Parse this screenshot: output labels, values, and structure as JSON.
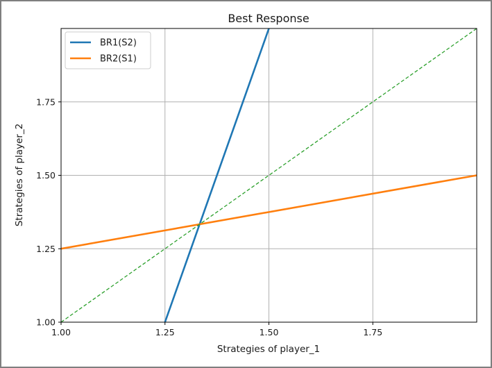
{
  "chart_data": {
    "type": "line",
    "title": "Best Response",
    "xlabel": "Strategies of player_1",
    "ylabel": "Strategies of player_2",
    "xlim": [
      1.0,
      2.0
    ],
    "ylim": [
      1.0,
      2.0
    ],
    "xticks": [
      1.0,
      1.25,
      1.5,
      1.75
    ],
    "yticks": [
      1.0,
      1.25,
      1.5,
      1.75
    ],
    "xtick_labels": [
      "1.00",
      "1.25",
      "1.50",
      "1.75"
    ],
    "ytick_labels": [
      "1.00",
      "1.25",
      "1.50",
      "1.75"
    ],
    "grid": true,
    "legend_position": "top-left",
    "series": [
      {
        "name": "BR1(S2)",
        "color": "#1f77b4",
        "style": "solid",
        "x": [
          1.25,
          1.5
        ],
        "y": [
          1.0,
          2.0
        ]
      },
      {
        "name": "BR2(S1)",
        "color": "#ff7f0e",
        "style": "solid",
        "x": [
          1.0,
          2.0
        ],
        "y": [
          1.25,
          1.5
        ]
      },
      {
        "color": "#2ca02c",
        "style": "dashed",
        "x": [
          1.0,
          2.0
        ],
        "y": [
          1.0,
          2.0
        ]
      }
    ]
  }
}
